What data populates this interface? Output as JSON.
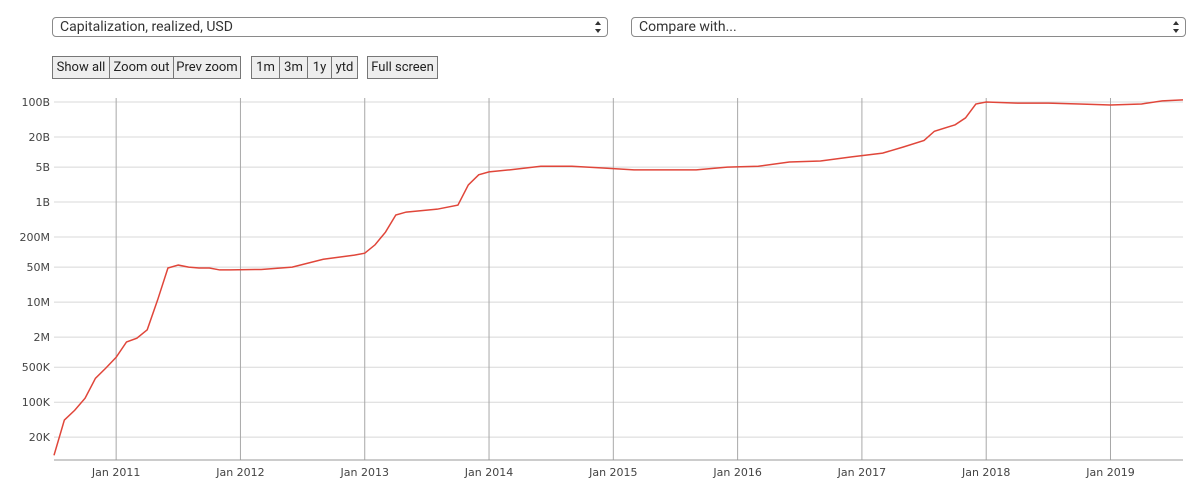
{
  "controls": {
    "metric": "Capitalization, realized, USD",
    "compare": "Compare with...",
    "zoom_buttons": [
      "Show all",
      "Zoom out",
      "Prev zoom"
    ],
    "range_buttons": [
      "1m",
      "3m",
      "1y",
      "ytd"
    ],
    "fullscreen": "Full screen"
  },
  "chart_data": {
    "type": "line",
    "log_scale": true,
    "grid": true,
    "x": [
      "2010-07",
      "2010-08",
      "2010-09",
      "2010-10",
      "2010-11",
      "2010-12",
      "2011-01",
      "2011-02",
      "2011-03",
      "2011-04",
      "2011-05",
      "2011-06",
      "2011-07",
      "2011-08",
      "2011-09",
      "2011-10",
      "2011-11",
      "2011-12",
      "2012-03",
      "2012-06",
      "2012-09",
      "2012-12",
      "2013-01",
      "2013-02",
      "2013-03",
      "2013-04",
      "2013-05",
      "2013-06",
      "2013-08",
      "2013-10",
      "2013-11",
      "2013-12",
      "2014-01",
      "2014-03",
      "2014-06",
      "2014-09",
      "2014-12",
      "2015-03",
      "2015-06",
      "2015-09",
      "2015-12",
      "2016-03",
      "2016-06",
      "2016-09",
      "2016-12",
      "2017-03",
      "2017-05",
      "2017-07",
      "2017-08",
      "2017-10",
      "2017-11",
      "2017-12",
      "2018-01",
      "2018-04",
      "2018-07",
      "2018-10",
      "2019-01",
      "2019-04",
      "2019-06",
      "2019-08"
    ],
    "series": [
      {
        "color": "#e0463a",
        "values": [
          8700,
          44000,
          69000,
          120000,
          300000,
          480000,
          790000,
          1600000,
          1900000,
          2800000,
          11000000,
          48000000,
          55000000,
          50000000,
          48000000,
          48000000,
          44000000,
          44000000,
          45000000,
          50000000,
          72000000,
          87000000,
          95000000,
          140000000,
          250000000,
          550000000,
          630000000,
          660000000,
          720000000,
          870000000,
          2200000000,
          3500000000,
          4000000000,
          4400000000,
          5200000000,
          5200000000,
          4800000000,
          4400000000,
          4400000000,
          4400000000,
          5000000000,
          5200000000,
          6300000000,
          6600000000,
          8000000000,
          9500000000,
          12600000000,
          17000000000,
          26000000000,
          35000000000,
          48000000000,
          91000000000,
          100000000000,
          95000000000,
          95000000000,
          91000000000,
          87000000000,
          91000000000,
          105000000000,
          110000000000
        ]
      }
    ],
    "xlim": [
      "2010-07",
      "2019-08"
    ],
    "xticks": [
      {
        "value": "2011-01",
        "label": "Jan 2011"
      },
      {
        "value": "2012-01",
        "label": "Jan 2012"
      },
      {
        "value": "2013-01",
        "label": "Jan 2013"
      },
      {
        "value": "2014-01",
        "label": "Jan 2014"
      },
      {
        "value": "2015-01",
        "label": "Jan 2015"
      },
      {
        "value": "2016-01",
        "label": "Jan 2016"
      },
      {
        "value": "2017-01",
        "label": "Jan 2017"
      },
      {
        "value": "2018-01",
        "label": "Jan 2018"
      },
      {
        "value": "2019-01",
        "label": "Jan 2019"
      }
    ],
    "ylim": [
      7000,
      120000000000
    ],
    "yticks": [
      {
        "value": 20000,
        "label": "20K"
      },
      {
        "value": 100000,
        "label": "100K"
      },
      {
        "value": 500000,
        "label": "500K"
      },
      {
        "value": 2000000,
        "label": "2M"
      },
      {
        "value": 10000000,
        "label": "10M"
      },
      {
        "value": 50000000,
        "label": "50M"
      },
      {
        "value": 200000000,
        "label": "200M"
      },
      {
        "value": 1000000000,
        "label": "1B"
      },
      {
        "value": 5000000000,
        "label": "5B"
      },
      {
        "value": 20000000000,
        "label": "20B"
      },
      {
        "value": 100000000000,
        "label": "100B"
      }
    ]
  }
}
